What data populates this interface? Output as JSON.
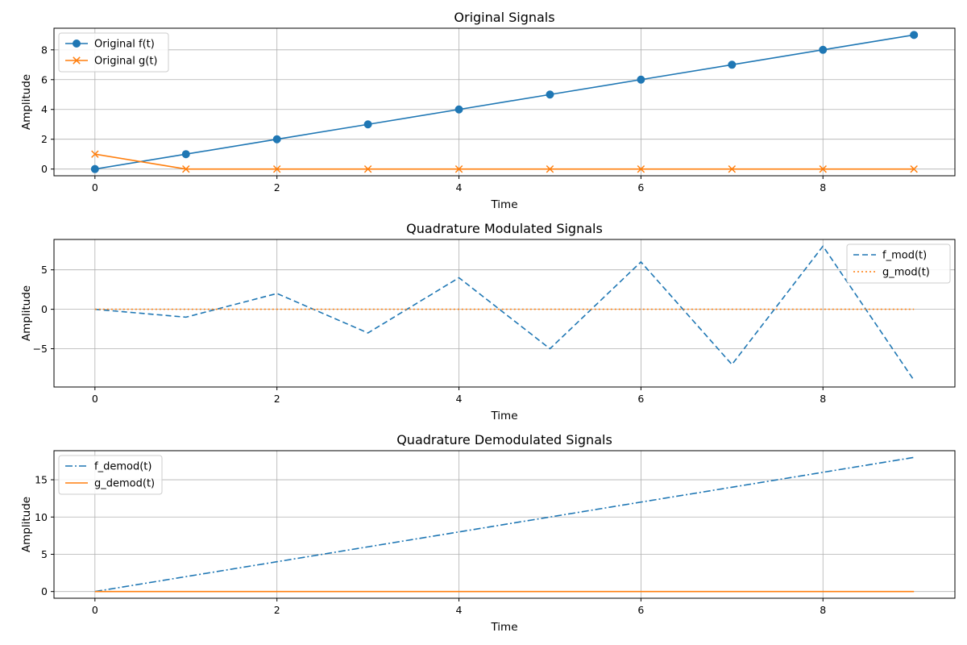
{
  "chart_data": [
    {
      "type": "line",
      "title": "Original Signals",
      "xlabel": "Time",
      "ylabel": "Amplitude",
      "xlim": [
        -0.45,
        9.45
      ],
      "ylim": [
        -0.45,
        9.45
      ],
      "xticks": [
        0,
        2,
        4,
        6,
        8
      ],
      "yticks": [
        0,
        2,
        4,
        6,
        8
      ],
      "ytick_labels": [
        "0",
        "2",
        "4",
        "6",
        "8"
      ],
      "grid": true,
      "legend_position": "upper-left",
      "series": [
        {
          "name": "Original f(t)",
          "x": [
            0,
            1,
            2,
            3,
            4,
            5,
            6,
            7,
            8,
            9
          ],
          "y": [
            0,
            1,
            2,
            3,
            4,
            5,
            6,
            7,
            8,
            9
          ],
          "color": "#1f77b4",
          "linestyle": "solid",
          "marker": "circle"
        },
        {
          "name": "Original g(t)",
          "x": [
            0,
            1,
            2,
            3,
            4,
            5,
            6,
            7,
            8,
            9
          ],
          "y": [
            1,
            0,
            0,
            0,
            0,
            0,
            0,
            0,
            0,
            0
          ],
          "color": "#ff7f0e",
          "linestyle": "solid",
          "marker": "x"
        }
      ]
    },
    {
      "type": "line",
      "title": "Quadrature Modulated Signals",
      "xlabel": "Time",
      "ylabel": "Amplitude",
      "xlim": [
        -0.45,
        9.45
      ],
      "ylim": [
        -9.85,
        8.85
      ],
      "xticks": [
        0,
        2,
        4,
        6,
        8
      ],
      "yticks": [
        -5,
        0,
        5
      ],
      "ytick_labels": [
        "−5",
        "0",
        "5"
      ],
      "grid": true,
      "legend_position": "upper-right",
      "series": [
        {
          "name": "f_mod(t)",
          "x": [
            0,
            1,
            2,
            3,
            4,
            5,
            6,
            7,
            8,
            9
          ],
          "y": [
            0,
            -1,
            2,
            -3,
            4,
            -5,
            6,
            -7,
            8,
            -9
          ],
          "color": "#1f77b4",
          "linestyle": "dashed",
          "marker": "none"
        },
        {
          "name": "g_mod(t)",
          "x": [
            0,
            1,
            2,
            3,
            4,
            5,
            6,
            7,
            8,
            9
          ],
          "y": [
            0,
            0,
            0,
            0,
            0,
            0,
            0,
            0,
            0,
            0
          ],
          "color": "#ff7f0e",
          "linestyle": "dotted",
          "marker": "none"
        }
      ]
    },
    {
      "type": "line",
      "title": "Quadrature Demodulated Signals",
      "xlabel": "Time",
      "ylabel": "Amplitude",
      "xlim": [
        -0.45,
        9.45
      ],
      "ylim": [
        -0.9,
        18.9
      ],
      "xticks": [
        0,
        2,
        4,
        6,
        8
      ],
      "yticks": [
        0,
        5,
        10,
        15
      ],
      "ytick_labels": [
        "0",
        "5",
        "10",
        "15"
      ],
      "grid": true,
      "legend_position": "upper-left",
      "series": [
        {
          "name": "f_demod(t)",
          "x": [
            0,
            1,
            2,
            3,
            4,
            5,
            6,
            7,
            8,
            9
          ],
          "y": [
            0,
            2,
            4,
            6,
            8,
            10,
            12,
            14,
            16,
            18
          ],
          "color": "#1f77b4",
          "linestyle": "dashdot",
          "marker": "none"
        },
        {
          "name": "g_demod(t)",
          "x": [
            0,
            1,
            2,
            3,
            4,
            5,
            6,
            7,
            8,
            9
          ],
          "y": [
            0,
            0,
            0,
            0,
            0,
            0,
            0,
            0,
            0,
            0
          ],
          "color": "#ff7f0e",
          "linestyle": "solid",
          "marker": "none"
        }
      ]
    }
  ]
}
